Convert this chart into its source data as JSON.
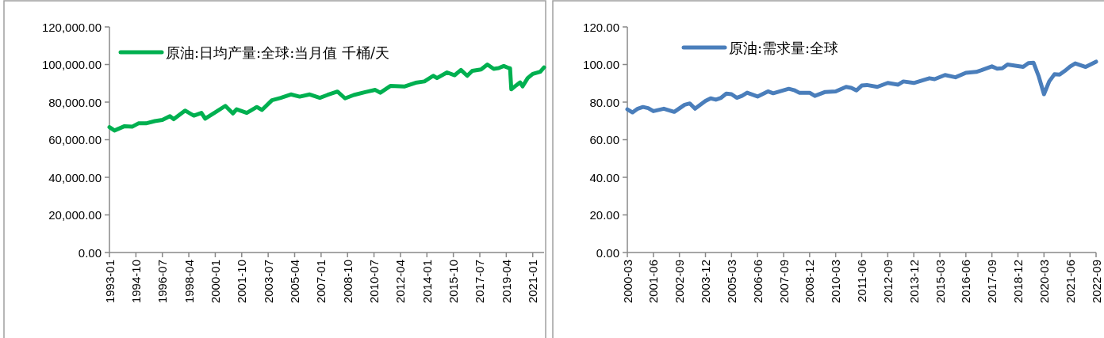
{
  "chart_data": [
    {
      "type": "line",
      "legend": "top left",
      "x": [
        "1993-01",
        "1993-05",
        "1994-01",
        "1994-07",
        "1994-12",
        "1995-06",
        "1996-01",
        "1996-07",
        "1997-01",
        "1997-04",
        "1998-01",
        "1998-08",
        "1999-02",
        "1999-05",
        "2000-02",
        "2000-09",
        "2001-03",
        "2001-06",
        "2002-02",
        "2002-10",
        "2003-02",
        "2003-10",
        "2004-05",
        "2005-01",
        "2005-08",
        "2006-04",
        "2006-12",
        "2007-06",
        "2008-02",
        "2008-08",
        "2009-03",
        "2009-12",
        "2010-08",
        "2010-12",
        "2011-08",
        "2012-07",
        "2013-04",
        "2013-11",
        "2014-06",
        "2014-09",
        "2015-05",
        "2015-11",
        "2016-04",
        "2016-09",
        "2017-01",
        "2017-08",
        "2018-01",
        "2018-06",
        "2018-10",
        "2019-02",
        "2019-06",
        "2019-07",
        "2019-08",
        "2019-12",
        "2020-03",
        "2020-05",
        "2020-09",
        "2021-01",
        "2021-07",
        "2021-10"
      ],
      "series": [
        {
          "name": "原油:日均产量:全球:当月值 千桶/天",
          "color": "#00b050",
          "values": [
            66700,
            64900,
            67200,
            66900,
            68700,
            68700,
            69900,
            70500,
            72500,
            70900,
            75500,
            72800,
            74300,
            71200,
            75000,
            78000,
            74000,
            76200,
            74300,
            77400,
            75800,
            81000,
            82300,
            84100,
            82900,
            84100,
            82300,
            83800,
            85600,
            82000,
            83800,
            85300,
            86500,
            85000,
            88600,
            88300,
            90300,
            91000,
            94000,
            92800,
            95800,
            94300,
            97100,
            94000,
            96600,
            97400,
            100000,
            97700,
            98100,
            99200,
            98100,
            98000,
            86800,
            89000,
            90500,
            88400,
            92800,
            95000,
            96200,
            98500
          ]
        }
      ],
      "xlim": [
        "1993-01",
        "2021-10"
      ],
      "xticks": [
        "1993-01",
        "1994-10",
        "1996-07",
        "1998-04",
        "2000-01",
        "2001-10",
        "2003-07",
        "2005-04",
        "2007-01",
        "2008-10",
        "2010-07",
        "2012-04",
        "2014-01",
        "2015-10",
        "2017-07",
        "2019-04",
        "2021-01"
      ],
      "ylim": [
        0,
        120000
      ],
      "yticks": [
        {
          "value": 0,
          "label": "0.00"
        },
        {
          "value": 20000,
          "label": "20,000.00"
        },
        {
          "value": 40000,
          "label": "40,000.00"
        },
        {
          "value": 60000,
          "label": "60,000.00"
        },
        {
          "value": 80000,
          "label": "80,000.00"
        },
        {
          "value": 100000,
          "label": "100,000.00"
        },
        {
          "value": 120000,
          "label": "120,000.00"
        }
      ]
    },
    {
      "type": "line",
      "legend": "top left",
      "x": [
        "2000-03",
        "2000-06",
        "2000-09",
        "2000-12",
        "2001-03",
        "2001-06",
        "2001-12",
        "2002-06",
        "2002-12",
        "2003-03",
        "2003-06",
        "2003-12",
        "2004-03",
        "2004-06",
        "2004-09",
        "2004-12",
        "2005-03",
        "2005-06",
        "2005-09",
        "2005-12",
        "2006-06",
        "2006-12",
        "2007-03",
        "2007-12",
        "2008-03",
        "2008-06",
        "2008-12",
        "2009-03",
        "2009-09",
        "2010-03",
        "2010-09",
        "2010-12",
        "2011-03",
        "2011-06",
        "2011-09",
        "2012-03",
        "2012-09",
        "2013-03",
        "2013-06",
        "2013-12",
        "2014-09",
        "2014-12",
        "2015-06",
        "2015-12",
        "2016-06",
        "2016-12",
        "2017-03",
        "2017-09",
        "2017-12",
        "2018-03",
        "2018-06",
        "2019-03",
        "2019-06",
        "2019-09",
        "2019-12",
        "2020-03",
        "2020-06",
        "2020-09",
        "2020-12",
        "2021-03",
        "2021-06",
        "2021-09",
        "2022-03",
        "2022-09"
      ],
      "series": [
        {
          "name": "原油:需求量:全球",
          "color": "#4a7ebb",
          "values": [
            76.2,
            74.5,
            76.5,
            77.4,
            76.8,
            75.2,
            76.5,
            74.8,
            78.6,
            79.3,
            76.5,
            80.6,
            82.0,
            81.3,
            82.3,
            84.5,
            84.2,
            82.3,
            83.3,
            85.0,
            83.0,
            85.7,
            84.7,
            87.1,
            86.4,
            85.0,
            85.0,
            83.3,
            85.4,
            85.7,
            88.1,
            87.6,
            86.2,
            88.8,
            89.1,
            88.1,
            90.2,
            89.3,
            91.0,
            90.2,
            92.7,
            92.2,
            94.4,
            93.2,
            95.6,
            96.1,
            97.0,
            99.0,
            97.8,
            98.0,
            100.0,
            98.7,
            100.7,
            100.9,
            93.6,
            84.2,
            91.0,
            94.8,
            94.6,
            96.6,
            98.9,
            100.6,
            98.7,
            101.5
          ]
        }
      ],
      "xlim": [
        "2000-03",
        "2022-09"
      ],
      "xticks": [
        "2000-03",
        "2001-06",
        "2002-09",
        "2003-12",
        "2005-03",
        "2006-06",
        "2007-09",
        "2008-12",
        "2010-03",
        "2011-06",
        "2012-09",
        "2013-12",
        "2015-03",
        "2016-06",
        "2017-09",
        "2018-12",
        "2020-03",
        "2021-06",
        "2022-09"
      ],
      "ylim": [
        0,
        120
      ],
      "yticks": [
        {
          "value": 0,
          "label": "0.00"
        },
        {
          "value": 20,
          "label": "20.00"
        },
        {
          "value": 40,
          "label": "40.00"
        },
        {
          "value": 60,
          "label": "60.00"
        },
        {
          "value": 80,
          "label": "80.00"
        },
        {
          "value": 100,
          "label": "100.00"
        },
        {
          "value": 120,
          "label": "120.00"
        }
      ]
    }
  ]
}
